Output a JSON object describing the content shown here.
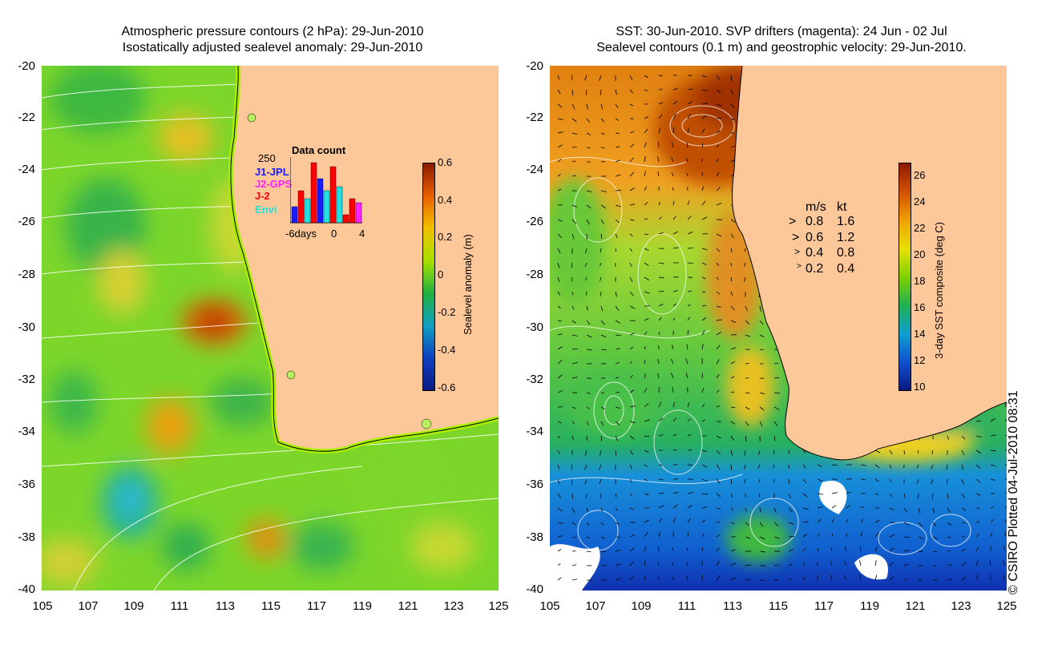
{
  "left_panel": {
    "title_line1": "Atmospheric pressure contours (2 hPa): 29-Jun-2010",
    "title_line2": "Isostatically adjusted sealevel anomaly: 29-Jun-2010",
    "colorbar": {
      "label": "Sealevel anomaly (m)",
      "ticks": [
        "0.6",
        "0.4",
        "0.2",
        "0",
        "-0.2",
        "-0.4",
        "-0.6"
      ],
      "colors": [
        "#8b1a00",
        "#e86000",
        "#f0c000",
        "#a8e000",
        "#20b040",
        "#10a0c0",
        "#1040c0",
        "#0a1a80"
      ]
    },
    "inset": {
      "title": "Data count",
      "ymax": "250",
      "legend": [
        {
          "name": "J1-JPL",
          "color": "#1a1aff"
        },
        {
          "name": "J2-GPS",
          "color": "#ff20ff"
        },
        {
          "name": "J-2",
          "color": "#ff0000"
        },
        {
          "name": "Envi",
          "color": "#20e0e0"
        }
      ],
      "xlabels": [
        "-6days",
        "0",
        "4"
      ]
    }
  },
  "right_panel": {
    "title_line1": "SST: 30-Jun-2010. SVP drifters (magenta): 24 Jun - 02 Jul",
    "title_line2": "Sealevel contours (0.1 m) and geostrophic velocity: 29-Jun-2010.",
    "colorbar": {
      "label": "3-day SST composite (deg C)",
      "ticks": [
        "26",
        "24",
        "22",
        "20",
        "18",
        "16",
        "14",
        "12",
        "10"
      ],
      "colors": [
        "#8b1a00",
        "#d05000",
        "#f0a000",
        "#e8e000",
        "#80d000",
        "#20b050",
        "#10a0d0",
        "#1050d0",
        "#0a1a80"
      ]
    },
    "velocity_legend": {
      "header_ms": "m/s",
      "header_kt": "kt",
      "rows": [
        {
          "ms": "0.8",
          "kt": "1.6"
        },
        {
          "ms": "0.6",
          "kt": "1.2"
        },
        {
          "ms": "0.4",
          "kt": "0.8"
        },
        {
          "ms": "0.2",
          "kt": "0.4"
        }
      ]
    }
  },
  "axes": {
    "y_labels": [
      "-20",
      "-22",
      "-24",
      "-26",
      "-28",
      "-30",
      "-32",
      "-34",
      "-36",
      "-38",
      "-40"
    ],
    "x_labels": [
      "105",
      "107",
      "109",
      "111",
      "113",
      "115",
      "117",
      "119",
      "121",
      "123",
      "125"
    ]
  },
  "colors": {
    "land": "#fcc899",
    "contour": "#ffffff"
  },
  "credit": "© CSIRO Plotted 04-Jul-2010 08:31"
}
